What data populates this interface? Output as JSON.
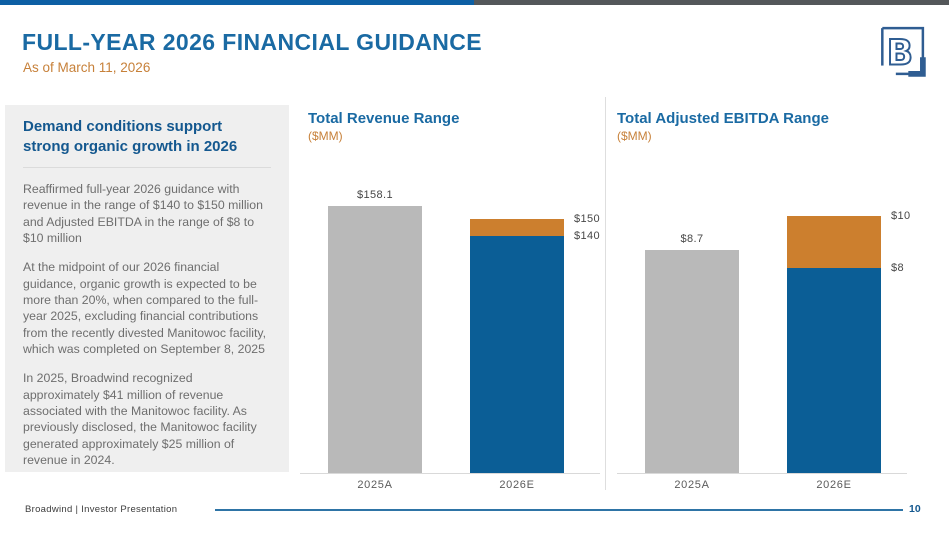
{
  "slide": {
    "title": "FULL-YEAR 2026 FINANCIAL GUIDANCE",
    "subtitle": "As of March 11, 2026",
    "footer_left": "Broadwind | Investor Presentation",
    "page_number": "10"
  },
  "colors": {
    "topbar_blue": "#0D5FA4",
    "topbar_gray": "#54575A",
    "title_blue": "#1A6AA3",
    "heading_blue": "#14588F",
    "accent_orange": "#C7813A",
    "bar_gray": "#B9B9B9",
    "bar_blue": "#0B5E96",
    "bar_orange": "#CC7F2E",
    "panel_background": "#EFEFEF",
    "footer_line_blue": "#2E74A6"
  },
  "panel": {
    "heading": "Demand conditions support strong organic growth in 2026",
    "paragraphs": [
      "Reaffirmed full-year 2026 guidance with revenue in the range of $140 to $150 million and Adjusted EBITDA in the range of $8 to $10 million",
      "At the midpoint of our 2026 financial guidance, organic growth is expected to be more than 20%, when compared to the full-year 2025, excluding financial contributions from the recently divested Manitowoc facility, which was completed on September 8, 2025",
      "In 2025, Broadwind recognized approximately $41 million of revenue associated with the Manitowoc facility. As previously disclosed, the Manitowoc facility generated approximately $25 million of revenue in 2024."
    ]
  },
  "chart_data": [
    {
      "type": "bar",
      "title": "Total Revenue Range",
      "subtitle": "($MM)",
      "categories": [
        "2025A",
        "2026E"
      ],
      "bars": [
        {
          "category": "2025A",
          "kind": "single",
          "value": 158.1,
          "label": "$158.1"
        },
        {
          "category": "2026E",
          "kind": "stacked-range",
          "low": 140,
          "high": 150,
          "low_label": "$140",
          "high_label": "$150"
        }
      ],
      "ylim": [
        0,
        185
      ],
      "grid": false,
      "legend": false
    },
    {
      "type": "bar",
      "title": "Total Adjusted EBITDA Range",
      "subtitle": "($MM)",
      "categories": [
        "2025A",
        "2026E"
      ],
      "bars": [
        {
          "category": "2025A",
          "kind": "single",
          "value": 8.7,
          "label": "$8.7"
        },
        {
          "category": "2026E",
          "kind": "stacked-range",
          "low": 8,
          "high": 10,
          "low_label": "$8",
          "high_label": "$10"
        }
      ],
      "ylim": [
        0,
        12.2
      ],
      "grid": false,
      "legend": false
    }
  ]
}
